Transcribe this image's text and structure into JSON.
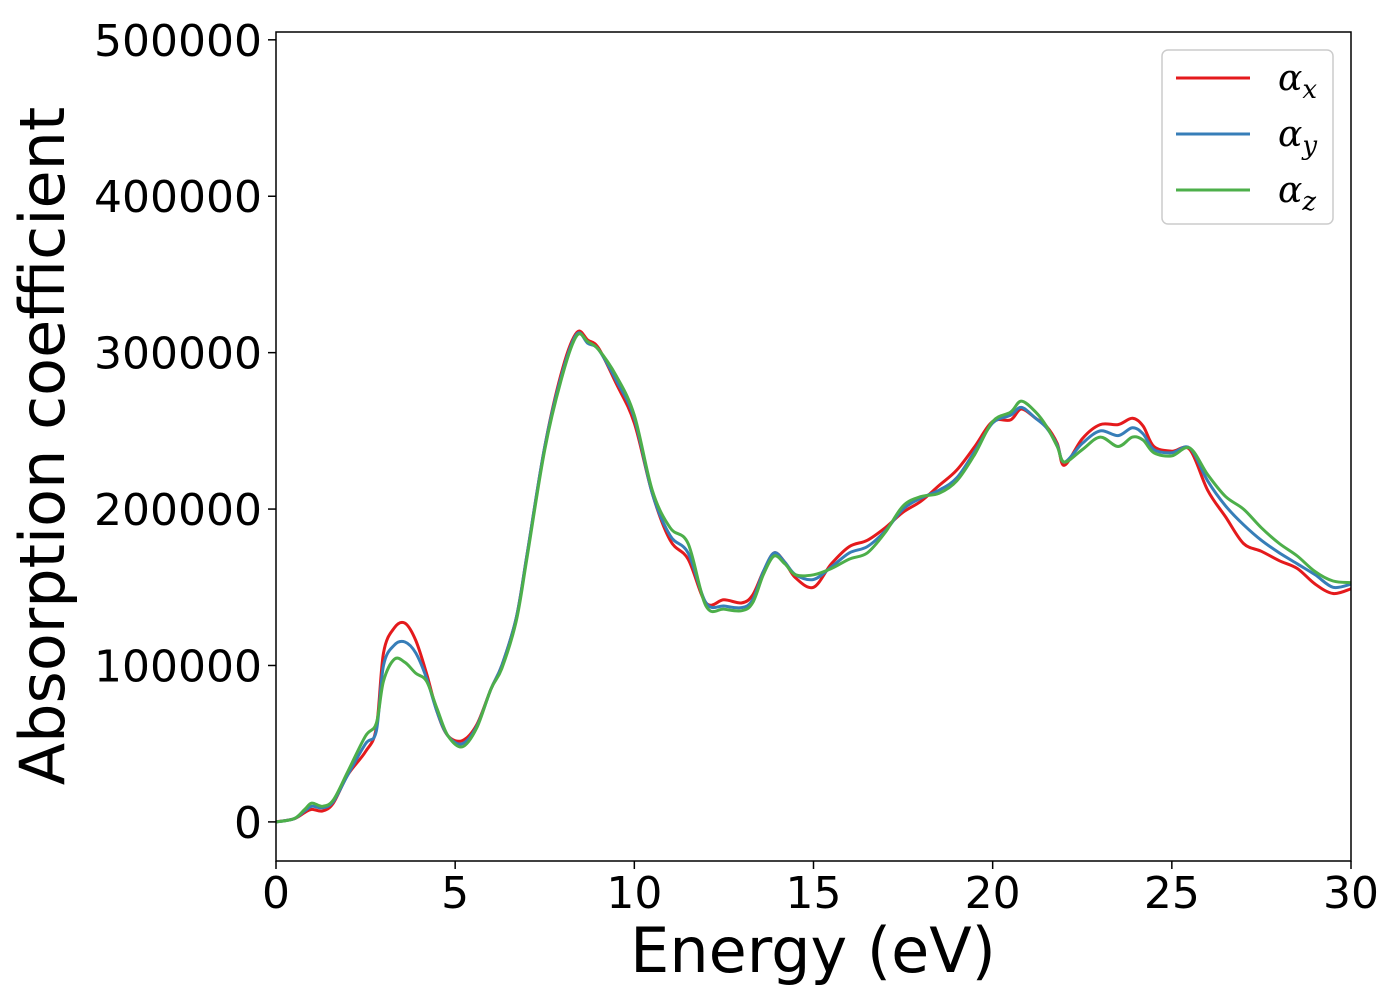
{
  "chart_data": {
    "type": "line",
    "xlabel": "Energy (eV)",
    "ylabel": "Absorption coefficient",
    "xlim": [
      0,
      30
    ],
    "ylim": [
      -25000,
      505000
    ],
    "xticks": [
      0,
      5,
      10,
      15,
      20,
      25,
      30
    ],
    "yticks": [
      0,
      100000,
      200000,
      300000,
      400000,
      500000
    ],
    "grid": false,
    "legend_position": "top-right",
    "series": [
      {
        "name": "α_x",
        "label_base": "α",
        "label_sub": "x",
        "color": "#e41a1c",
        "x": [
          0,
          0.5,
          0.8,
          1.0,
          1.3,
          1.6,
          2.0,
          2.5,
          2.8,
          3.0,
          3.3,
          3.6,
          3.9,
          4.2,
          4.5,
          4.8,
          5.2,
          5.6,
          6.0,
          6.3,
          6.7,
          7.0,
          7.5,
          8.0,
          8.4,
          8.7,
          9.0,
          9.5,
          10.0,
          10.5,
          11.0,
          11.5,
          12.0,
          12.5,
          13.0,
          13.3,
          13.6,
          13.9,
          14.2,
          14.5,
          15.0,
          15.5,
          16.0,
          16.5,
          17.0,
          17.5,
          18.0,
          18.5,
          19.0,
          19.5,
          20.0,
          20.5,
          20.8,
          21.2,
          21.5,
          21.8,
          22.0,
          22.5,
          23.0,
          23.5,
          23.9,
          24.2,
          24.5,
          25.0,
          25.5,
          26.0,
          26.5,
          27.0,
          27.5,
          28.0,
          28.5,
          29.0,
          29.5,
          30.0
        ],
        "y": [
          0,
          2000,
          6000,
          8000,
          7000,
          12000,
          30000,
          45000,
          60000,
          108000,
          124000,
          127000,
          116000,
          95000,
          70000,
          55000,
          52000,
          62000,
          85000,
          100000,
          130000,
          170000,
          240000,
          290000,
          313000,
          308000,
          303000,
          280000,
          255000,
          210000,
          180000,
          168000,
          140000,
          142000,
          140000,
          145000,
          160000,
          172000,
          166000,
          156000,
          150000,
          165000,
          176000,
          180000,
          188000,
          198000,
          205000,
          215000,
          225000,
          240000,
          256000,
          257000,
          264000,
          258000,
          253000,
          242000,
          228000,
          245000,
          254000,
          254000,
          258000,
          253000,
          240000,
          237000,
          238000,
          212000,
          195000,
          178000,
          173000,
          167000,
          162000,
          152000,
          146000,
          149000
        ]
      },
      {
        "name": "α_y",
        "label_base": "α",
        "label_sub": "y",
        "color": "#377eb8",
        "x": [
          0,
          0.5,
          0.8,
          1.0,
          1.3,
          1.6,
          2.0,
          2.5,
          2.8,
          3.0,
          3.3,
          3.6,
          3.9,
          4.2,
          4.5,
          4.8,
          5.2,
          5.6,
          6.0,
          6.3,
          6.7,
          7.0,
          7.5,
          8.0,
          8.4,
          8.7,
          9.0,
          9.5,
          10.0,
          10.5,
          11.0,
          11.5,
          12.0,
          12.5,
          13.0,
          13.3,
          13.6,
          13.9,
          14.2,
          14.5,
          15.0,
          15.5,
          16.0,
          16.5,
          17.0,
          17.5,
          18.0,
          18.5,
          19.0,
          19.5,
          20.0,
          20.5,
          20.8,
          21.2,
          21.5,
          21.8,
          22.0,
          22.5,
          23.0,
          23.5,
          23.9,
          24.2,
          24.5,
          25.0,
          25.5,
          26.0,
          26.5,
          27.0,
          27.5,
          28.0,
          28.5,
          29.0,
          29.5,
          30.0
        ],
        "y": [
          0,
          2000,
          7000,
          10000,
          9000,
          13000,
          30000,
          50000,
          58000,
          100000,
          113000,
          115000,
          108000,
          92000,
          70000,
          55000,
          50000,
          61000,
          85000,
          100000,
          130000,
          170000,
          240000,
          288000,
          312000,
          306000,
          302000,
          282000,
          258000,
          210000,
          183000,
          172000,
          140000,
          138000,
          137000,
          142000,
          160000,
          172000,
          166000,
          158000,
          155000,
          163000,
          172000,
          176000,
          186000,
          200000,
          207000,
          212000,
          220000,
          237000,
          255000,
          260000,
          265000,
          258000,
          252000,
          241000,
          230000,
          242000,
          250000,
          247000,
          252000,
          248000,
          238000,
          236000,
          239000,
          218000,
          202000,
          190000,
          180000,
          172000,
          165000,
          158000,
          150000,
          152000
        ]
      },
      {
        "name": "α_z",
        "label_base": "α",
        "label_sub": "z",
        "color": "#4daf4a",
        "x": [
          0,
          0.5,
          0.8,
          1.0,
          1.3,
          1.6,
          2.0,
          2.5,
          2.8,
          3.0,
          3.3,
          3.6,
          3.9,
          4.2,
          4.5,
          4.8,
          5.2,
          5.6,
          6.0,
          6.3,
          6.7,
          7.0,
          7.5,
          8.0,
          8.4,
          8.7,
          9.0,
          9.5,
          10.0,
          10.5,
          11.0,
          11.5,
          12.0,
          12.5,
          13.0,
          13.3,
          13.6,
          13.9,
          14.2,
          14.5,
          15.0,
          15.5,
          16.0,
          16.5,
          17.0,
          17.5,
          18.0,
          18.5,
          19.0,
          19.5,
          20.0,
          20.5,
          20.8,
          21.2,
          21.5,
          21.8,
          22.0,
          22.5,
          23.0,
          23.5,
          23.9,
          24.2,
          24.5,
          25.0,
          25.5,
          26.0,
          26.5,
          27.0,
          27.5,
          28.0,
          28.5,
          29.0,
          29.5,
          30.0
        ],
        "y": [
          0,
          2000,
          8000,
          12000,
          10000,
          14000,
          32000,
          55000,
          63000,
          90000,
          104000,
          102000,
          95000,
          90000,
          72000,
          55000,
          48000,
          60000,
          85000,
          98000,
          128000,
          168000,
          238000,
          286000,
          311000,
          307000,
          302000,
          285000,
          260000,
          212000,
          188000,
          178000,
          138000,
          136000,
          135000,
          140000,
          158000,
          170000,
          165000,
          158000,
          158000,
          162000,
          168000,
          172000,
          185000,
          202000,
          208000,
          210000,
          218000,
          235000,
          256000,
          262000,
          269000,
          262000,
          253000,
          240000,
          230000,
          238000,
          246000,
          240000,
          246000,
          244000,
          236000,
          234000,
          239000,
          222000,
          208000,
          200000,
          188000,
          178000,
          170000,
          160000,
          154000,
          153000
        ]
      }
    ]
  }
}
